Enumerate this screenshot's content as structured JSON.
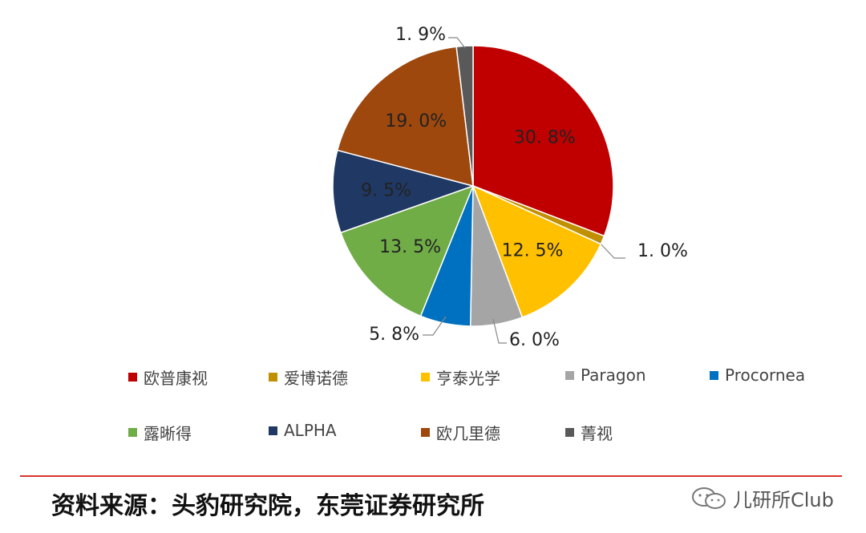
{
  "chart_data": {
    "type": "pie",
    "slices": [
      {
        "name": "欧普康视",
        "value": 30.8,
        "label": "30. 8%",
        "color": "#c00000"
      },
      {
        "name": "爱博诺德",
        "value": 1.0,
        "label": "1. 0%",
        "color": "#c09000"
      },
      {
        "name": "亨泰光学",
        "value": 12.5,
        "label": "12. 5%",
        "color": "#ffc000"
      },
      {
        "name": "Paragon",
        "value": 6.0,
        "label": "6. 0%",
        "color": "#a5a5a5"
      },
      {
        "name": "Procornea",
        "value": 5.8,
        "label": "5. 8%",
        "color": "#0070c0"
      },
      {
        "name": "露晰得",
        "value": 13.5,
        "label": "13. 5%",
        "color": "#70ad47"
      },
      {
        "name": "ALPHA",
        "value": 9.5,
        "label": "9. 5%",
        "color": "#203864"
      },
      {
        "name": "欧几里德",
        "value": 19.0,
        "label": "19. 0%",
        "color": "#9e480e"
      },
      {
        "name": "菁视",
        "value": 1.9,
        "label": "1. 9%",
        "color": "#595959"
      }
    ],
    "legend_position": "bottom"
  },
  "source": {
    "text": "资料来源：头豹研究院，东莞证券研究所"
  },
  "watermark": {
    "text": "儿研所Club",
    "icon": "wechat-icon"
  },
  "colors": {
    "divider": "#d9342b"
  }
}
